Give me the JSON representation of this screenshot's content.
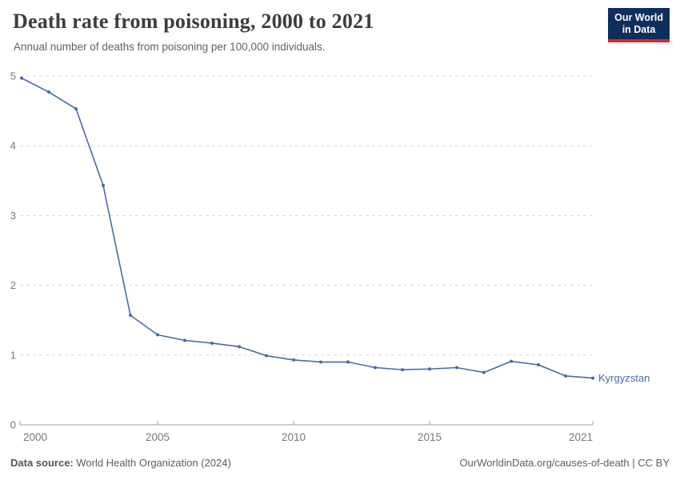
{
  "header": {
    "title": "Death rate from poisoning, 2000 to 2021",
    "subtitle": "Annual number of deaths from poisoning per 100,000 individuals."
  },
  "logo": {
    "line1": "Our World",
    "line2": "in Data",
    "bg_color": "#0e2e5c",
    "accent_color": "#e0242c"
  },
  "footer": {
    "source_label": "Data source:",
    "source": "World Health Organization (2024)",
    "url": "OurWorldinData.org/causes-of-death",
    "divider": " | ",
    "license": "CC BY"
  },
  "chart_data": {
    "type": "line",
    "title": "Death rate from poisoning, 2000 to 2021",
    "subtitle": "Annual number of deaths from poisoning per 100,000 individuals.",
    "x": [
      2000,
      2001,
      2002,
      2003,
      2004,
      2005,
      2006,
      2007,
      2008,
      2009,
      2010,
      2011,
      2012,
      2013,
      2014,
      2015,
      2016,
      2017,
      2018,
      2019,
      2020,
      2021
    ],
    "series": [
      {
        "name": "Kyrgyzstan",
        "color": "#4a6aa5",
        "values": [
          4.97,
          4.77,
          4.53,
          3.43,
          1.57,
          1.29,
          1.21,
          1.17,
          1.12,
          0.99,
          0.93,
          0.9,
          0.9,
          0.82,
          0.79,
          0.8,
          0.82,
          0.75,
          0.91,
          0.86,
          0.7,
          0.67
        ]
      }
    ],
    "xlabel": "",
    "ylabel": "",
    "xlim": [
      2000,
      2021
    ],
    "ylim": [
      0,
      5
    ],
    "xticks": [
      2000,
      2005,
      2010,
      2015,
      2021
    ],
    "yticks": [
      0,
      1,
      2,
      3,
      4,
      5
    ],
    "grid": "horizontal-dashed",
    "grid_color": "#dadada",
    "axis_color": "#a1a1a1",
    "tick_label_color": "#787878",
    "legend": "entity-label-at-line-end"
  }
}
